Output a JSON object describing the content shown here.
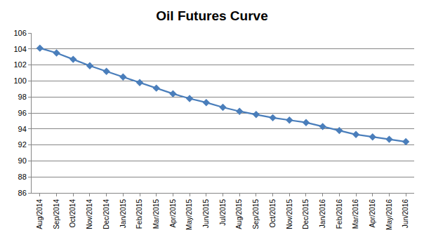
{
  "chart_data": {
    "type": "line",
    "title": "Oil Futures Curve",
    "categories": [
      "Aug/2014",
      "Sep/2014",
      "Oct/2014",
      "Nov/2014",
      "Dec/2014",
      "Jan/2015",
      "Feb/2015",
      "Mar/2015",
      "Apr/2015",
      "May/2015",
      "Jun/2015",
      "Jul/2015",
      "Aug/2015",
      "Sep/2015",
      "Oct/2015",
      "Nov/2015",
      "Dec/2015",
      "Jan/2016",
      "Feb/2016",
      "Mar/2016",
      "Apr/2016",
      "May/2016",
      "Jun/2016"
    ],
    "values": [
      104.1,
      103.5,
      102.7,
      101.9,
      101.2,
      100.5,
      99.8,
      99.1,
      98.4,
      97.8,
      97.3,
      96.7,
      96.2,
      95.8,
      95.4,
      95.1,
      94.8,
      94.3,
      93.8,
      93.3,
      93.0,
      92.7,
      92.4
    ],
    "color": "#4a7ebb",
    "marker": "diamond",
    "line_style": "solid",
    "ylim": [
      86,
      106
    ],
    "yticks": [
      86,
      88,
      90,
      92,
      94,
      96,
      98,
      100,
      102,
      104,
      106
    ],
    "grid": true
  }
}
